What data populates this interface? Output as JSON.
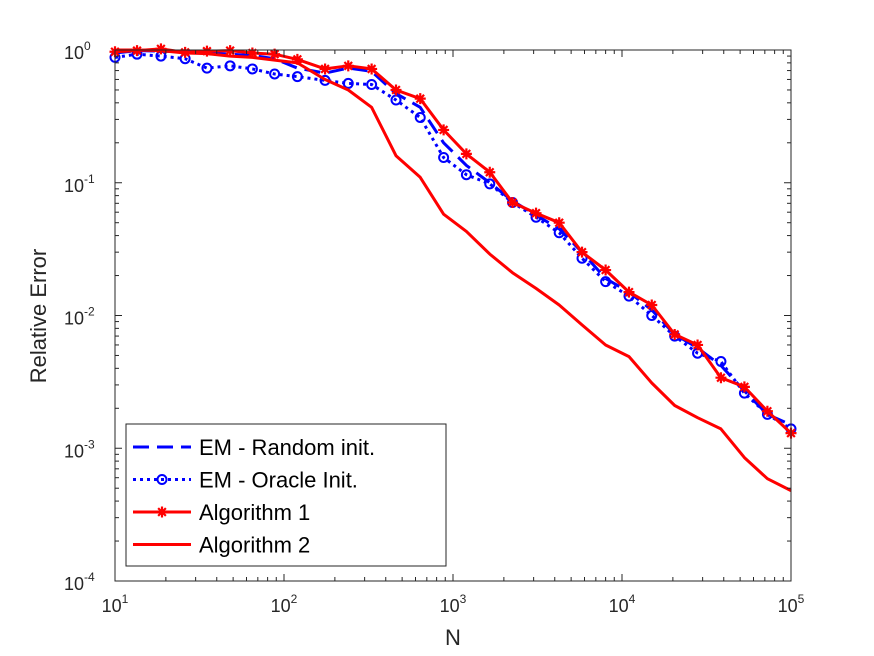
{
  "chart_data": {
    "type": "line",
    "xscale": "log",
    "yscale": "log",
    "xlim": [
      10,
      100000
    ],
    "ylim": [
      0.0001,
      1
    ],
    "xlabel": "N",
    "ylabel": "Relative Error",
    "title": "",
    "grid": false,
    "legend_position": "bottom-left",
    "xticks": [
      {
        "value": 10,
        "base": "10",
        "exp": "1"
      },
      {
        "value": 100,
        "base": "10",
        "exp": "2"
      },
      {
        "value": 1000,
        "base": "10",
        "exp": "3"
      },
      {
        "value": 10000,
        "base": "10",
        "exp": "4"
      },
      {
        "value": 100000,
        "base": "10",
        "exp": "5"
      }
    ],
    "yticks": [
      {
        "value": 1,
        "base": "10",
        "exp": "0"
      },
      {
        "value": 0.1,
        "base": "10",
        "exp": "-1"
      },
      {
        "value": 0.01,
        "base": "10",
        "exp": "-2"
      },
      {
        "value": 0.001,
        "base": "10",
        "exp": "-3"
      },
      {
        "value": 0.0001,
        "base": "10",
        "exp": "-4"
      }
    ],
    "series": [
      {
        "name": "EM - Random init.",
        "color": "#0000ff",
        "style": "dashed",
        "marker": "none",
        "x": [
          10,
          13.5,
          18.7,
          26,
          35,
          48,
          65,
          88,
          120,
          175,
          240,
          330,
          460,
          640,
          880,
          1200,
          1650,
          2250,
          3100,
          4250,
          5800,
          8000,
          11000,
          15000,
          20500,
          28000,
          38500,
          53000,
          72500,
          100000
        ],
        "y": [
          0.95,
          0.99,
          0.98,
          0.97,
          0.96,
          0.93,
          0.91,
          0.86,
          0.73,
          0.67,
          0.73,
          0.69,
          0.47,
          0.37,
          0.2,
          0.135,
          0.1,
          0.073,
          0.057,
          0.045,
          0.03,
          0.019,
          0.015,
          0.011,
          0.0072,
          0.0057,
          0.0042,
          0.0027,
          0.0018,
          0.0015
        ]
      },
      {
        "name": "EM - Oracle Init.",
        "color": "#0000ff",
        "style": "dotted",
        "marker": "circle",
        "x": [
          10,
          13.5,
          18.7,
          26,
          35,
          48,
          65,
          88,
          120,
          175,
          240,
          330,
          460,
          640,
          880,
          1200,
          1650,
          2250,
          3100,
          4250,
          5800,
          8000,
          11000,
          15000,
          20500,
          28000,
          38500,
          53000,
          72500,
          100000
        ],
        "y": [
          0.88,
          0.93,
          0.9,
          0.86,
          0.73,
          0.76,
          0.72,
          0.66,
          0.63,
          0.59,
          0.56,
          0.55,
          0.42,
          0.31,
          0.155,
          0.115,
          0.098,
          0.071,
          0.055,
          0.042,
          0.027,
          0.018,
          0.014,
          0.01,
          0.007,
          0.0052,
          0.0045,
          0.0026,
          0.0018,
          0.0014
        ]
      },
      {
        "name": "Algorithm 1",
        "color": "#ff0000",
        "style": "solid",
        "marker": "star",
        "x": [
          10,
          13.5,
          18.7,
          26,
          35,
          48,
          65,
          88,
          120,
          175,
          240,
          330,
          460,
          640,
          880,
          1200,
          1650,
          2250,
          3100,
          4250,
          5800,
          8000,
          11000,
          15000,
          20500,
          28000,
          38500,
          53000,
          72500,
          100000
        ],
        "y": [
          0.97,
          0.99,
          1.02,
          0.96,
          0.98,
          0.99,
          0.95,
          0.93,
          0.85,
          0.72,
          0.76,
          0.72,
          0.5,
          0.43,
          0.25,
          0.165,
          0.12,
          0.071,
          0.059,
          0.05,
          0.03,
          0.022,
          0.015,
          0.012,
          0.0072,
          0.006,
          0.0034,
          0.0029,
          0.0019,
          0.0013
        ]
      },
      {
        "name": "Algorithm 2",
        "color": "#ff0000",
        "style": "solid",
        "marker": "none",
        "x": [
          10,
          13.5,
          18.7,
          26,
          35,
          48,
          65,
          88,
          120,
          175,
          240,
          330,
          460,
          640,
          880,
          1200,
          1650,
          2250,
          3100,
          4250,
          5800,
          8000,
          11000,
          15000,
          20500,
          28000,
          38500,
          53000,
          72500,
          100000
        ],
        "y": [
          1.0,
          1.0,
          0.99,
          0.95,
          0.94,
          0.9,
          0.88,
          0.84,
          0.8,
          0.6,
          0.5,
          0.37,
          0.16,
          0.11,
          0.058,
          0.043,
          0.029,
          0.021,
          0.016,
          0.012,
          0.0085,
          0.006,
          0.0049,
          0.0031,
          0.0021,
          0.0017,
          0.0014,
          0.00085,
          0.00059,
          0.00048
        ]
      }
    ]
  }
}
